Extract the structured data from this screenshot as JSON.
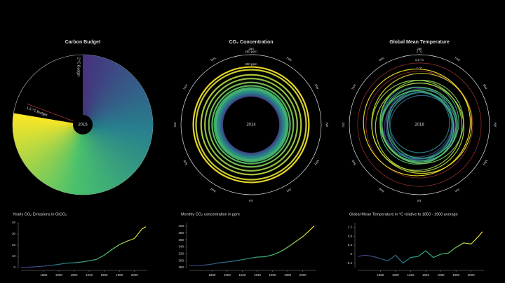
{
  "chart_data": [
    {
      "type": "radial-budget",
      "title": "Carbon Budget",
      "center_label": "2015",
      "annotations": [
        "1.5 °C Budget",
        "2 °C Budget"
      ]
    },
    {
      "type": "radial",
      "title": "CO₂ Concentration",
      "center_label": "2014",
      "months": [
        "Jan",
        "Feb",
        "Mar",
        "Apr",
        "May",
        "Jun",
        "Jul",
        "Aug",
        "Sep",
        "Oct",
        "Nov",
        "Dec"
      ],
      "rlim": [
        170,
        450
      ],
      "rticks": [
        {
          "value": 400,
          "label": "400 ppm"
        },
        {
          "value": 450,
          "label": "450 ppm"
        }
      ]
    },
    {
      "type": "radial",
      "title": "Global Mean Temperature",
      "center_label": "2016",
      "months": [
        "Jan",
        "Feb",
        "Mar",
        "Apr",
        "May",
        "Jun",
        "Jul",
        "Aug",
        "Sep",
        "Oct",
        "Nov",
        "Dec"
      ],
      "rlim": [
        -2.2,
        2
      ],
      "rticks": [
        {
          "value": 1,
          "label": "1 °C"
        },
        {
          "value": 1.5,
          "label": "1.5 °C"
        },
        {
          "value": 2,
          "label": "2 °C"
        }
      ]
    },
    {
      "type": "line",
      "title": "Yearly CO₂ Emissions in GtCO₂",
      "x": [
        1850,
        1860,
        1870,
        1880,
        1890,
        1900,
        1910,
        1920,
        1930,
        1940,
        1950,
        1960,
        1970,
        1980,
        1990,
        2000,
        2010,
        2015
      ],
      "values": [
        0.2,
        0.4,
        0.8,
        1.3,
        2.0,
        2.9,
        4.0,
        4.3,
        5.0,
        6.0,
        7.4,
        11.0,
        16.0,
        20.5,
        23.5,
        26.0,
        34.5,
        36.5
      ],
      "xlim": [
        1850,
        2017
      ],
      "xticks": [
        1880,
        1900,
        1920,
        1940,
        1960,
        1980,
        2000
      ],
      "ylim": [
        0,
        40
      ],
      "yticks": [
        0,
        10,
        20,
        30,
        40
      ]
    },
    {
      "type": "line",
      "title": "Monthly CO₂ concentration in ppm",
      "x": [
        1850,
        1860,
        1870,
        1880,
        1890,
        1900,
        1910,
        1920,
        1930,
        1940,
        1950,
        1960,
        1970,
        1980,
        1990,
        2000,
        2010,
        2015
      ],
      "values": [
        285.2,
        286,
        287.3,
        290,
        294,
        296.4,
        299.5,
        303,
        307,
        310.5,
        311.5,
        316.9,
        325.7,
        338.8,
        354.4,
        369.6,
        389.9,
        400.8
      ],
      "xlim": [
        1850,
        2017
      ],
      "xticks": [
        1880,
        1900,
        1920,
        1940,
        1960,
        1980,
        2000
      ],
      "ylim": [
        280,
        410
      ],
      "yticks": [
        280,
        300,
        320,
        340,
        360,
        380,
        400
      ]
    },
    {
      "type": "line",
      "title": "Global Mean Temperature in °C relative to 1850 - 1900 average",
      "x": [
        1850,
        1860,
        1870,
        1880,
        1890,
        1900,
        1910,
        1920,
        1930,
        1940,
        1950,
        1960,
        1970,
        1980,
        1990,
        2000,
        2010,
        2015
      ],
      "values": [
        -0.1,
        -0.05,
        -0.1,
        -0.2,
        -0.3,
        -0.05,
        -0.4,
        -0.15,
        -0.1,
        0.15,
        -0.15,
        0,
        0.05,
        0.3,
        0.5,
        0.45,
        0.8,
        1.0
      ],
      "xlim": [
        1850,
        2017
      ],
      "xticks": [
        1880,
        1900,
        1920,
        1940,
        1960,
        1980,
        2000
      ],
      "ylim": [
        -0.6,
        1.4
      ],
      "yticks": [
        -0.4,
        0,
        0.4,
        0.8,
        1.2
      ]
    }
  ]
}
